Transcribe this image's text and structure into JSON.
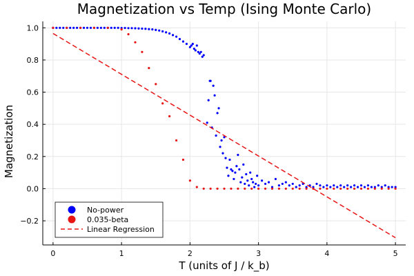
{
  "chart_data": {
    "type": "scatter",
    "title": "Magnetization vs Temp (Ising Monte Carlo)",
    "xlabel": "T (units of J / k_b)",
    "ylabel": "Magnetization",
    "xlim": [
      -0.15,
      5.15
    ],
    "ylim": [
      -0.35,
      1.04
    ],
    "x_ticks": [
      0,
      1,
      2,
      3,
      4,
      5
    ],
    "y_ticks": [
      -0.2,
      0.0,
      0.2,
      0.4,
      0.6,
      0.8,
      1.0
    ],
    "x_tick_labels": [
      "0",
      "1",
      "2",
      "3",
      "4",
      "5"
    ],
    "y_tick_labels": [
      "−0.2",
      "0.0",
      "0.2",
      "0.4",
      "0.6",
      "0.8",
      "1.0"
    ],
    "grid": true,
    "legend_position": "bottom-left",
    "series": [
      {
        "name": "No-power",
        "kind": "scatter",
        "color": "#0000ff",
        "x": [
          0.0,
          0.05,
          0.1,
          0.15,
          0.2,
          0.25,
          0.3,
          0.35,
          0.4,
          0.45,
          0.5,
          0.55,
          0.6,
          0.65,
          0.7,
          0.75,
          0.8,
          0.85,
          0.9,
          0.95,
          1.0,
          1.05,
          1.1,
          1.15,
          1.2,
          1.25,
          1.3,
          1.35,
          1.4,
          1.45,
          1.5,
          1.55,
          1.6,
          1.65,
          1.7,
          1.75,
          1.8,
          1.85,
          1.9,
          1.95,
          2.0,
          2.02,
          2.04,
          2.06,
          2.08,
          2.1,
          2.12,
          2.14,
          2.16,
          2.18,
          2.2,
          2.25,
          2.27,
          2.29,
          2.3,
          2.32,
          2.34,
          2.36,
          2.38,
          2.4,
          2.42,
          2.44,
          2.46,
          2.48,
          2.5,
          2.52,
          2.54,
          2.56,
          2.58,
          2.6,
          2.62,
          2.64,
          2.66,
          2.68,
          2.7,
          2.72,
          2.74,
          2.76,
          2.78,
          2.8,
          2.82,
          2.84,
          2.86,
          2.88,
          2.9,
          2.92,
          2.94,
          2.96,
          2.98,
          3.0,
          3.05,
          3.1,
          3.15,
          3.2,
          3.25,
          3.3,
          3.35,
          3.4,
          3.45,
          3.5,
          3.55,
          3.6,
          3.65,
          3.7,
          3.75,
          3.8,
          3.85,
          3.9,
          3.95,
          4.0,
          4.05,
          4.1,
          4.15,
          4.2,
          4.25,
          4.3,
          4.35,
          4.4,
          4.45,
          4.5,
          4.55,
          4.6,
          4.65,
          4.7,
          4.75,
          4.8,
          4.85,
          4.9,
          4.95,
          5.0
        ],
        "y": [
          1.0,
          1.0,
          1.0,
          1.0,
          1.0,
          1.0,
          1.0,
          1.0,
          1.0,
          1.0,
          1.0,
          1.0,
          1.0,
          1.0,
          1.0,
          1.0,
          1.0,
          1.0,
          1.0,
          1.0,
          0.999,
          0.999,
          0.998,
          0.998,
          0.997,
          0.996,
          0.995,
          0.994,
          0.992,
          0.99,
          0.987,
          0.983,
          0.978,
          0.972,
          0.965,
          0.955,
          0.945,
          0.93,
          0.915,
          0.9,
          0.88,
          0.89,
          0.9,
          0.87,
          0.86,
          0.89,
          0.85,
          0.84,
          0.85,
          0.82,
          0.83,
          0.41,
          0.55,
          0.67,
          0.67,
          0.38,
          0.64,
          0.58,
          0.33,
          0.47,
          0.5,
          0.26,
          0.3,
          0.22,
          0.32,
          0.19,
          0.13,
          0.08,
          0.18,
          0.12,
          0.11,
          0.06,
          0.1,
          0.14,
          0.21,
          0.12,
          0.04,
          0.07,
          0.15,
          0.03,
          0.09,
          0.05,
          0.02,
          0.1,
          0.06,
          0.04,
          0.01,
          0.03,
          0.08,
          0.02,
          0.05,
          0.03,
          0.04,
          0.01,
          0.06,
          0.02,
          0.03,
          0.04,
          0.02,
          0.03,
          0.01,
          0.02,
          0.03,
          0.01,
          0.02,
          0.01,
          0.03,
          0.02,
          0.01,
          0.02,
          0.01,
          0.02,
          0.01,
          0.02,
          0.01,
          0.02,
          0.01,
          0.02,
          0.01,
          0.02,
          0.01,
          0.02,
          0.01,
          0.01,
          0.02,
          0.01,
          0.02,
          0.01,
          0.01,
          0.01
        ],
        "marker": "dot"
      },
      {
        "name": "0.035-beta",
        "kind": "scatter",
        "color": "#e81313",
        "x": [
          0.0,
          0.2,
          0.4,
          0.6,
          0.8,
          1.0,
          1.1,
          1.2,
          1.3,
          1.4,
          1.5,
          1.6,
          1.7,
          1.8,
          1.9,
          2.0,
          2.1,
          2.2,
          2.3,
          2.4,
          2.5,
          2.6,
          2.7,
          2.8,
          2.9,
          3.0,
          3.1,
          3.2,
          3.3,
          3.4,
          3.5,
          3.6,
          3.7,
          3.8,
          3.9,
          4.0,
          4.1,
          4.2,
          4.3,
          4.4,
          4.5,
          4.6,
          4.7,
          4.8,
          4.9,
          5.0
        ],
        "y": [
          1.0,
          1.0,
          1.0,
          1.0,
          1.0,
          0.99,
          0.96,
          0.91,
          0.85,
          0.75,
          0.65,
          0.53,
          0.45,
          0.3,
          0.18,
          0.05,
          0.01,
          0.0,
          0.0,
          0.0,
          0.0,
          0.0,
          0.0,
          0.0,
          0.0,
          0.0,
          0.0,
          0.0,
          0.0,
          0.0,
          0.0,
          0.0,
          0.0,
          0.0,
          0.0,
          0.0,
          0.0,
          0.0,
          0.0,
          0.0,
          0.0,
          0.0,
          0.0,
          0.0,
          0.0,
          0.0
        ],
        "marker": "dot"
      },
      {
        "name": "Linear Regression",
        "kind": "line",
        "color": "#e81313",
        "dash": "dashed",
        "x": [
          0.0,
          5.0
        ],
        "y": [
          0.965,
          -0.305
        ]
      }
    ]
  }
}
